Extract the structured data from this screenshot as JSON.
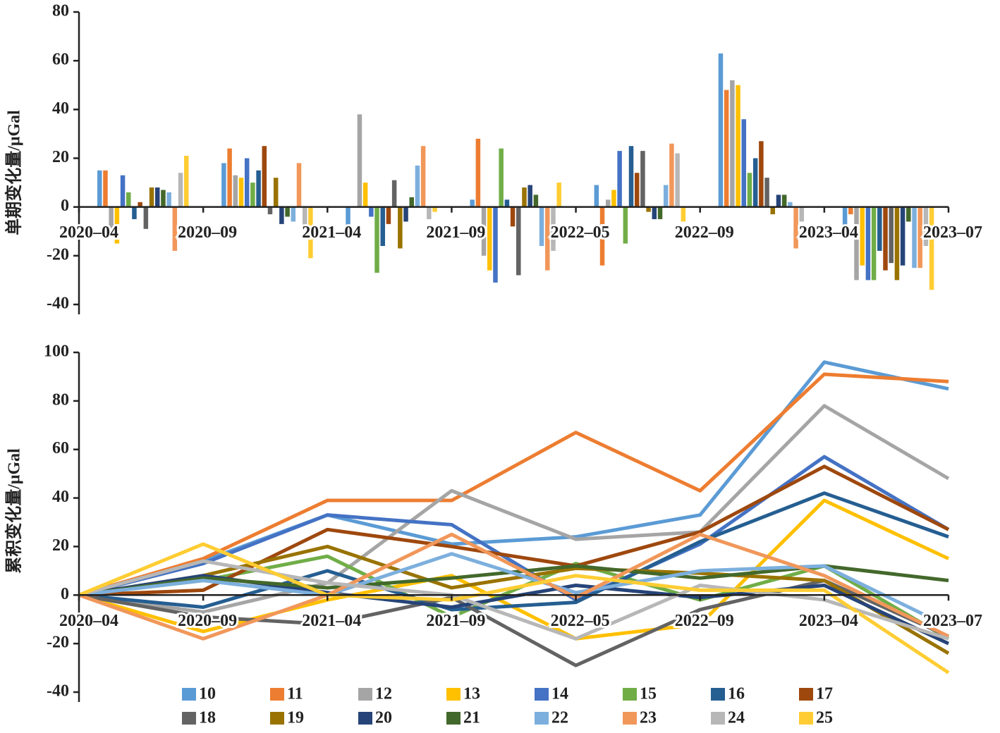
{
  "chart_data": [
    {
      "type": "bar",
      "ylabel": "单期变化量/μGal",
      "categories": [
        "2020–04",
        "2020–09",
        "2021–04",
        "2021–09",
        "2022–05",
        "2022–09",
        "2023–04",
        "2023–07"
      ],
      "ylim": [
        -40,
        80
      ],
      "yticks": [
        -40,
        -20,
        0,
        20,
        40,
        60,
        80
      ],
      "series": [
        {
          "name": "10",
          "color": "#5b9bd5",
          "values": [
            null,
            15,
            18,
            -8,
            3,
            9,
            63,
            -8
          ]
        },
        {
          "name": "11",
          "color": "#ed7d31",
          "values": [
            null,
            15,
            24,
            0,
            28,
            -24,
            48,
            -3
          ]
        },
        {
          "name": "12",
          "color": "#a5a5a5",
          "values": [
            null,
            -9,
            13,
            38,
            -20,
            3,
            52,
            -30
          ]
        },
        {
          "name": "13",
          "color": "#ffc000",
          "values": [
            null,
            -15,
            12,
            10,
            -26,
            7,
            50,
            -24
          ]
        },
        {
          "name": "14",
          "color": "#4472c4",
          "values": [
            null,
            13,
            20,
            -4,
            -31,
            23,
            36,
            -30
          ]
        },
        {
          "name": "15",
          "color": "#70ad47",
          "values": [
            null,
            6,
            10,
            -27,
            24,
            -15,
            14,
            -30
          ]
        },
        {
          "name": "16",
          "color": "#255e91",
          "values": [
            null,
            -5,
            15,
            -16,
            3,
            25,
            20,
            -18
          ]
        },
        {
          "name": "17",
          "color": "#9e480e",
          "values": [
            null,
            2,
            25,
            -7,
            -8,
            14,
            27,
            -26
          ]
        },
        {
          "name": "18",
          "color": "#636363",
          "values": [
            null,
            -9,
            -3,
            11,
            -28,
            23,
            12,
            -23
          ]
        },
        {
          "name": "19",
          "color": "#997300",
          "values": [
            null,
            8,
            12,
            -17,
            8,
            -2,
            -3,
            -30
          ]
        },
        {
          "name": "20",
          "color": "#264478",
          "values": [
            null,
            8,
            -7,
            -6,
            9,
            -5,
            5,
            -24
          ]
        },
        {
          "name": "21",
          "color": "#43682b",
          "values": [
            null,
            7,
            -4,
            4,
            5,
            -5,
            5,
            -6
          ]
        },
        {
          "name": "22",
          "color": "#7cafdd",
          "values": [
            null,
            6,
            -6,
            17,
            -16,
            9,
            2,
            -25
          ]
        },
        {
          "name": "23",
          "color": "#f1975a",
          "values": [
            null,
            -18,
            18,
            25,
            -26,
            26,
            -17,
            -25
          ]
        },
        {
          "name": "24",
          "color": "#b7b7b7",
          "values": [
            null,
            14,
            -9,
            -5,
            -18,
            22,
            -6,
            -16
          ]
        },
        {
          "name": "25",
          "color": "#ffcd33",
          "values": [
            null,
            21,
            -21,
            -2,
            10,
            -6,
            0,
            -34
          ]
        }
      ]
    },
    {
      "type": "line",
      "ylabel": "累积变化量/μGal",
      "categories": [
        "2020–04",
        "2020–09",
        "2021–04",
        "2021–09",
        "2022–05",
        "2022–09",
        "2023–04",
        "2023–07"
      ],
      "ylim": [
        -40,
        100
      ],
      "yticks": [
        -40,
        -20,
        0,
        20,
        40,
        60,
        80,
        100
      ],
      "series": [
        {
          "name": "10",
          "color": "#5b9bd5",
          "values": [
            0,
            14,
            33,
            21,
            24,
            33,
            96,
            85
          ]
        },
        {
          "name": "11",
          "color": "#ed7d31",
          "values": [
            0,
            15,
            39,
            39,
            67,
            43,
            91,
            88
          ]
        },
        {
          "name": "12",
          "color": "#a5a5a5",
          "values": [
            0,
            -7,
            5,
            43,
            23,
            26,
            78,
            48
          ]
        },
        {
          "name": "13",
          "color": "#ffc000",
          "values": [
            0,
            -15,
            -2,
            8,
            -18,
            -12,
            39,
            15
          ]
        },
        {
          "name": "14",
          "color": "#4472c4",
          "values": [
            0,
            13,
            33,
            29,
            -2,
            21,
            57,
            27
          ]
        },
        {
          "name": "15",
          "color": "#70ad47",
          "values": [
            0,
            6,
            16,
            -9,
            13,
            -2,
            12,
            -18
          ]
        },
        {
          "name": "16",
          "color": "#255e91",
          "values": [
            0,
            -5,
            10,
            -6,
            -3,
            22,
            42,
            24
          ]
        },
        {
          "name": "17",
          "color": "#9e480e",
          "values": [
            0,
            2,
            27,
            20,
            12,
            26,
            53,
            27
          ]
        },
        {
          "name": "18",
          "color": "#636363",
          "values": [
            0,
            -9,
            -12,
            -1,
            -29,
            -6,
            6,
            -17
          ]
        },
        {
          "name": "19",
          "color": "#997300",
          "values": [
            0,
            8,
            20,
            3,
            11,
            9,
            6,
            -24
          ]
        },
        {
          "name": "20",
          "color": "#264478",
          "values": [
            0,
            8,
            1,
            -5,
            4,
            -1,
            4,
            -20
          ]
        },
        {
          "name": "21",
          "color": "#43682b",
          "values": [
            0,
            7,
            3,
            7,
            12,
            7,
            12,
            6
          ]
        },
        {
          "name": "22",
          "color": "#7cafdd",
          "values": [
            0,
            6,
            0,
            17,
            1,
            10,
            12,
            -13
          ]
        },
        {
          "name": "23",
          "color": "#f1975a",
          "values": [
            0,
            -18,
            0,
            25,
            -1,
            25,
            8,
            -17
          ]
        },
        {
          "name": "24",
          "color": "#b7b7b7",
          "values": [
            0,
            14,
            5,
            0,
            -18,
            4,
            -2,
            -18
          ]
        },
        {
          "name": "25",
          "color": "#ffcd33",
          "values": [
            0,
            21,
            0,
            -2,
            8,
            2,
            2,
            -32
          ]
        }
      ]
    }
  ]
}
